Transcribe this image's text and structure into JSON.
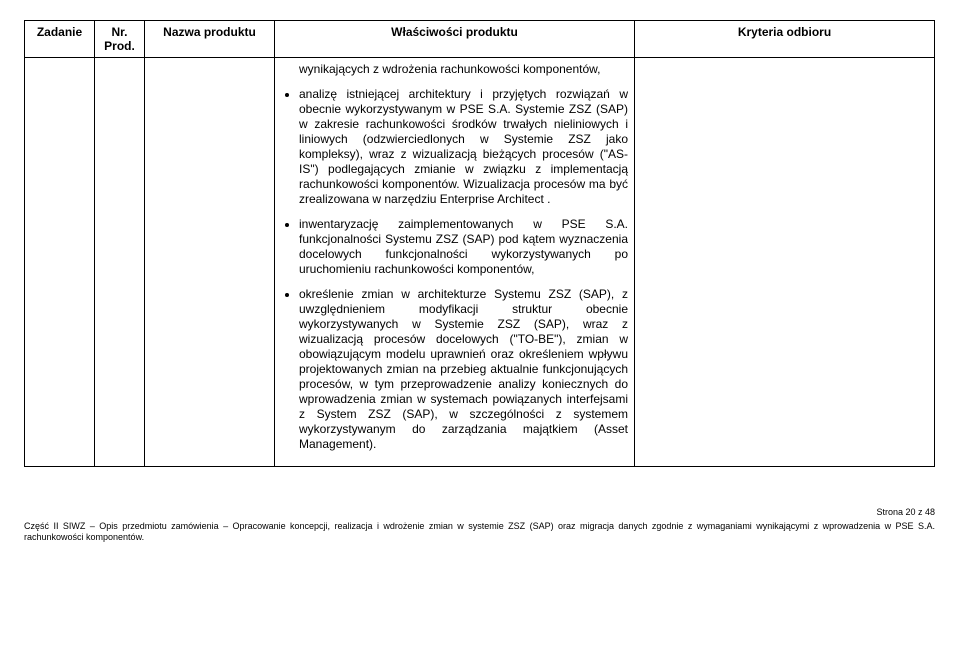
{
  "header": {
    "col1": "Zadanie",
    "col2": "Nr. Prod.",
    "col3": "Nazwa produktu",
    "col4": "Właściwości produktu",
    "col5": "Kryteria odbioru"
  },
  "body": {
    "pre_text": "wynikających z wdrożenia rachunkowości komponentów,",
    "items": [
      "analizę istniejącej architektury i przyjętych rozwiązań w obecnie wykorzystywanym w PSE S.A. Systemie ZSZ (SAP) w zakresie rachunkowości środków trwałych nieliniowych i liniowych (odzwierciedlonych w Systemie ZSZ jako kompleksy), wraz z wizualizacją bieżących procesów (\"AS-IS\") podlegających zmianie w związku z implementacją rachunkowości komponentów. Wizualizacja procesów ma być zrealizowana w narzędziu Enterprise Architect .",
      "inwentaryzację zaimplementowanych w PSE S.A. funkcjonalności Systemu ZSZ (SAP) pod kątem wyznaczenia docelowych funkcjonalności wykorzystywanych po uruchomieniu rachunkowości komponentów,",
      "określenie zmian w architekturze Systemu ZSZ (SAP), z uwzględnieniem modyfikacji struktur obecnie wykorzystywanych w Systemie ZSZ (SAP), wraz z wizualizacją procesów docelowych (\"TO-BE\"), zmian w obowiązującym modelu uprawnień oraz określeniem wpływu projektowanych zmian na przebieg aktualnie funkcjonujących procesów, w tym przeprowadzenie analizy koniecznych do wprowadzenia zmian w systemach powiązanych interfejsami z System ZSZ (SAP), w szczególności z systemem wykorzystywanym do zarządzania majątkiem (Asset Management)."
    ]
  },
  "footer": {
    "page": "Strona 20 z 48",
    "text": "Część II SIWZ – Opis przedmiotu zamówienia – Opracowanie koncepcji, realizacja i wdrożenie zmian w systemie ZSZ (SAP) oraz migracja danych zgodnie z wymaganiami wynikającymi z wprowadzenia w PSE S.A. rachunkowości komponentów."
  }
}
